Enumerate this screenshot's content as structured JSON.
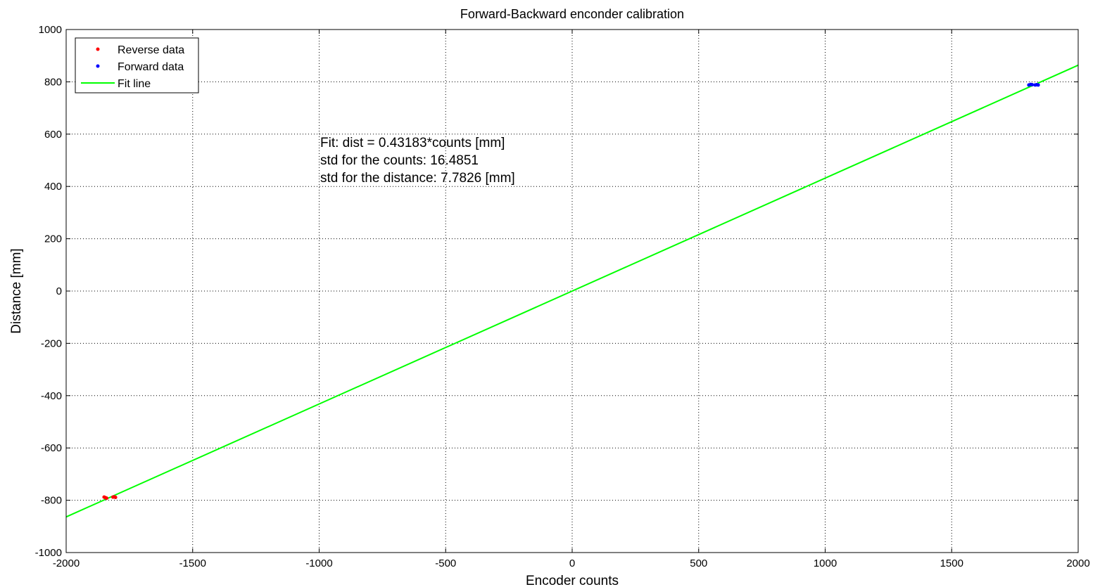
{
  "chart_data": {
    "type": "scatter",
    "title": "Forward-Backward enconder calibration",
    "xlabel": "Encoder counts",
    "ylabel": "Distance [mm]",
    "xlim": [
      -2000,
      2000
    ],
    "ylim": [
      -1000,
      1000
    ],
    "xticks": [
      -2000,
      -1500,
      -1000,
      -500,
      0,
      500,
      1000,
      1500,
      2000
    ],
    "yticks": [
      -1000,
      -800,
      -600,
      -400,
      -200,
      0,
      200,
      400,
      600,
      800,
      1000
    ],
    "grid": true,
    "legend_position": "top-left",
    "series": [
      {
        "name": "Reverse data",
        "kind": "scatter",
        "color": "#ff0000",
        "points": [
          [
            -1850,
            -788
          ],
          [
            -1845,
            -790
          ],
          [
            -1840,
            -792
          ],
          [
            -1815,
            -788
          ],
          [
            -1810,
            -787
          ],
          [
            -1805,
            -789
          ]
        ]
      },
      {
        "name": "Forward data",
        "kind": "scatter",
        "color": "#0000ff",
        "points": [
          [
            1805,
            788
          ],
          [
            1812,
            790
          ],
          [
            1818,
            789
          ],
          [
            1830,
            788
          ],
          [
            1836,
            789
          ],
          [
            1842,
            788
          ]
        ]
      },
      {
        "name": "Fit line",
        "kind": "line",
        "color": "#00ff00",
        "slope": 0.43183,
        "x_range": [
          -2000,
          2000
        ]
      }
    ],
    "annotations": [
      "Fit: dist = 0.43183*counts [mm]",
      "std for the counts: 16.4851",
      "std for the distance: 7.7826 [mm]"
    ]
  }
}
